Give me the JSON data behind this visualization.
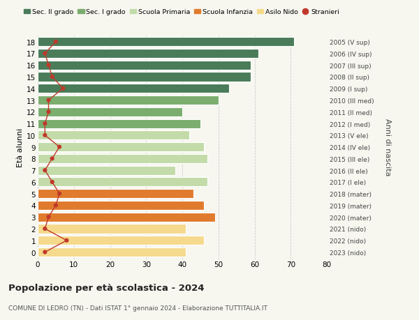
{
  "ages": [
    18,
    17,
    16,
    15,
    14,
    13,
    12,
    11,
    10,
    9,
    8,
    7,
    6,
    5,
    4,
    3,
    2,
    1,
    0
  ],
  "years": [
    "2005 (V sup)",
    "2006 (IV sup)",
    "2007 (III sup)",
    "2008 (II sup)",
    "2009 (I sup)",
    "2010 (III med)",
    "2011 (II med)",
    "2012 (I med)",
    "2013 (V ele)",
    "2014 (IV ele)",
    "2015 (III ele)",
    "2016 (II ele)",
    "2017 (I ele)",
    "2018 (mater)",
    "2019 (mater)",
    "2020 (mater)",
    "2021 (nido)",
    "2022 (nido)",
    "2023 (nido)"
  ],
  "bar_values": [
    71,
    61,
    59,
    59,
    53,
    50,
    40,
    45,
    42,
    46,
    47,
    38,
    47,
    43,
    46,
    49,
    41,
    46,
    41
  ],
  "stranieri": [
    5,
    2,
    3,
    4,
    7,
    3,
    3,
    2,
    2,
    6,
    4,
    2,
    4,
    6,
    5,
    3,
    2,
    8,
    2
  ],
  "bar_colors": [
    "#4a7c59",
    "#4a7c59",
    "#4a7c59",
    "#4a7c59",
    "#4a7c59",
    "#7aad6e",
    "#7aad6e",
    "#7aad6e",
    "#c2dba8",
    "#c2dba8",
    "#c2dba8",
    "#c2dba8",
    "#c2dba8",
    "#e07b2e",
    "#e07b2e",
    "#e07b2e",
    "#f5d98c",
    "#f5d98c",
    "#f5d98c"
  ],
  "legend_labels": [
    "Sec. II grado",
    "Sec. I grado",
    "Scuola Primaria",
    "Scuola Infanzia",
    "Asilo Nido",
    "Stranieri"
  ],
  "legend_colors": [
    "#4a7c59",
    "#7aad6e",
    "#c2dba8",
    "#e07b2e",
    "#f5d98c",
    "#c0392b"
  ],
  "stranieri_color": "#c0392b",
  "title": "Popolazione per età scolastica - 2024",
  "subtitle": "COMUNE DI LEDRO (TN) - Dati ISTAT 1° gennaio 2024 - Elaborazione TUTTITALIA.IT",
  "ylabel": "Età alunni",
  "right_ylabel": "Anni di nascita",
  "xlim": [
    0,
    80
  ],
  "xticks": [
    0,
    10,
    20,
    30,
    40,
    50,
    60,
    70,
    80
  ],
  "bg_color": "#f7f7f0",
  "bar_height": 0.78
}
